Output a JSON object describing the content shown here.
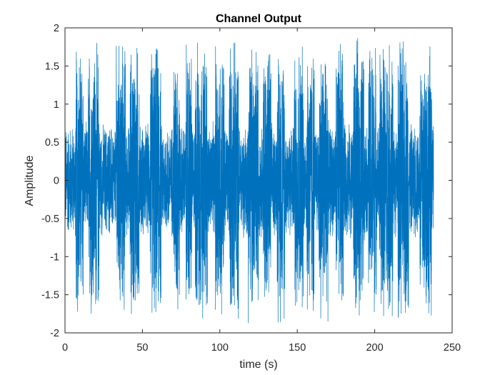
{
  "colors": {
    "series": "#0072BD",
    "axis": "#262626",
    "background": "#ffffff"
  },
  "chart_data": {
    "type": "line",
    "title": "Channel Output",
    "xlabel": "time (s)",
    "ylabel": "Amplitude",
    "xlim": [
      0,
      250
    ],
    "ylim": [
      -2,
      2
    ],
    "xticks": [
      0,
      50,
      100,
      150,
      200,
      250
    ],
    "yticks": [
      -2,
      -1.5,
      -1,
      -0.5,
      0,
      0.5,
      1,
      1.5,
      2
    ],
    "xtick_labels": [
      "0",
      "50",
      "100",
      "150",
      "200",
      "250"
    ],
    "ytick_labels": [
      "-2",
      "-1.5",
      "-1",
      "-0.5",
      "0",
      "0.5",
      "1",
      "1.5",
      "2"
    ],
    "grid": false,
    "legend": "none",
    "series": [
      {
        "data_range_x": [
          0,
          238
        ],
        "burst_envelope": {
          "note": "high-amplitude segments alternate with low-amplitude segments",
          "high_amplitude_peak": 1.95,
          "low_amplitude_peak": 0.8
        }
      }
    ]
  }
}
